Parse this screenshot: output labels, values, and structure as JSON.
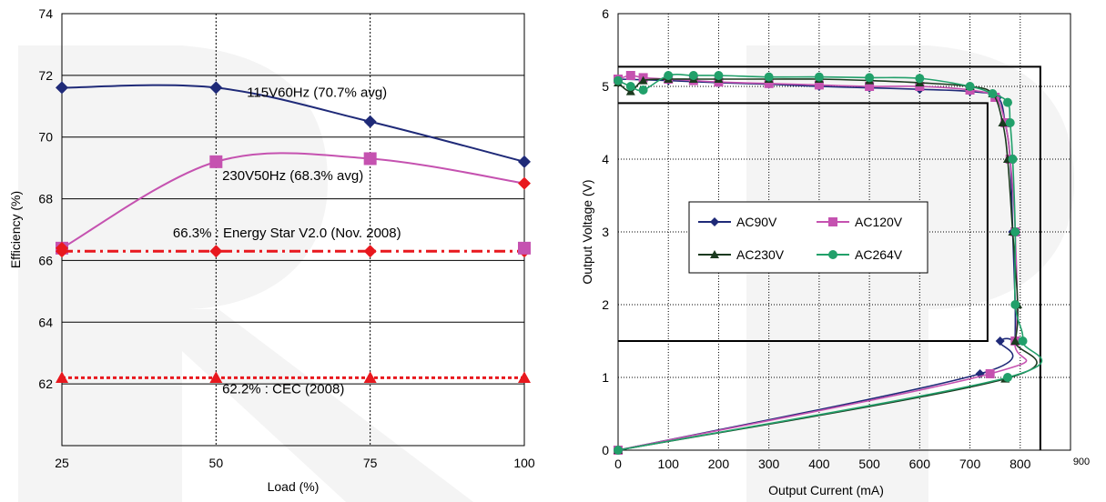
{
  "charts": [
    {
      "chart_data": {
        "type": "line",
        "xlabel": "Load (%)",
        "ylabel": "Efficiency (%)",
        "categories": [
          25,
          50,
          75,
          100
        ],
        "xlim": [
          25,
          100
        ],
        "ylim": [
          60,
          74
        ],
        "yticks": [
          62,
          64,
          66,
          68,
          70,
          72,
          74
        ],
        "grid": true,
        "series": [
          {
            "values": [
              71.6,
              71.6,
              70.5,
              69.2
            ],
            "color": "#1f2a78",
            "marker": "diamond"
          },
          {
            "values": [
              66.4,
              69.2,
              69.3,
              68.5
            ],
            "color": "#c552b0",
            "marker": "square",
            "last_marker": "diamond"
          },
          {
            "values": [
              66.3,
              66.3,
              66.3,
              66.3
            ],
            "color": "#e8181e",
            "marker": "diamond",
            "dash": "dash-dot"
          },
          {
            "values": [
              62.2,
              62.2,
              62.2,
              62.2
            ],
            "color": "#e8181e",
            "marker": "triangle",
            "dash": "dotted"
          }
        ],
        "extra_markers": [
          {
            "x": 100,
            "y": 66.4,
            "color": "#c552b0",
            "marker": "square"
          },
          {
            "x": 25,
            "y": 66.4,
            "color": "#e8181e",
            "marker": "diamond"
          }
        ],
        "annotations": [
          {
            "text": "115V60Hz (70.7% avg)",
            "x": 55,
            "y": 71.3
          },
          {
            "text": "230V50Hz (68.3% avg)",
            "x": 51,
            "y": 68.6
          },
          {
            "text": "66.3% : Energy Star V2.0 (Nov. 2008)",
            "x": 43,
            "y": 66.75
          },
          {
            "text": "62.2% : CEC (2008)",
            "x": 51,
            "y": 61.7
          }
        ]
      }
    },
    {
      "chart_data": {
        "type": "line",
        "xlabel": "Output Current (mA)",
        "ylabel": "Output Voltage (V)",
        "xlim": [
          0,
          900
        ],
        "ylim": [
          0,
          6
        ],
        "xticks": [
          0,
          100,
          200,
          300,
          400,
          500,
          600,
          700,
          800,
          900
        ],
        "yticks": [
          0,
          1,
          2,
          3,
          4,
          5,
          6
        ],
        "grid": true,
        "legend_position": "center-left",
        "series": [
          {
            "name": "AC90V",
            "color": "#1f2a78",
            "marker": "diamond",
            "x": [
              0,
              100,
              200,
              300,
              400,
              500,
              600,
              700,
              755,
              770,
              780,
              785,
              785,
              790,
              790,
              792,
              760,
              720,
              0
            ],
            "y": [
              5.1,
              5.08,
              5.05,
              5.03,
              5.0,
              4.98,
              4.96,
              4.93,
              4.85,
              4.5,
              4.0,
              3.0,
              3.0,
              2.0,
              1.5,
              1.5,
              1.5,
              1.05,
              0
            ]
          },
          {
            "name": "AC120V",
            "color": "#c552b0",
            "marker": "square",
            "x": [
              0,
              25,
              50,
              100,
              150,
              200,
              300,
              400,
              500,
              600,
              700,
              750,
              770,
              780,
              790,
              790,
              740,
              0
            ],
            "y": [
              5.1,
              5.15,
              5.12,
              5.1,
              5.08,
              5.06,
              5.04,
              5.02,
              5.0,
              5.0,
              4.95,
              4.85,
              4.5,
              4.0,
              3.0,
              1.5,
              1.05,
              0
            ]
          },
          {
            "name": "AC230V",
            "color": "#1b3a1f",
            "marker": "triangle",
            "x": [
              0,
              25,
              50,
              100,
              150,
              200,
              300,
              400,
              500,
              600,
              700,
              745,
              765,
              775,
              785,
              795,
              790,
              770,
              0
            ],
            "y": [
              5.05,
              4.93,
              5.08,
              5.1,
              5.1,
              5.1,
              5.1,
              5.1,
              5.08,
              5.05,
              5.0,
              4.9,
              4.5,
              4.0,
              3.0,
              2.0,
              1.5,
              0.98,
              0
            ]
          },
          {
            "name": "AC264V",
            "color": "#21a06a",
            "marker": "circle",
            "x": [
              0,
              25,
              50,
              100,
              150,
              200,
              300,
              400,
              500,
              600,
              700,
              745,
              775,
              780,
              785,
              790,
              790,
              805,
              775,
              0
            ],
            "y": [
              5.08,
              5.0,
              4.95,
              5.15,
              5.15,
              5.15,
              5.13,
              5.13,
              5.12,
              5.11,
              5.0,
              4.9,
              4.78,
              4.5,
              4.0,
              3.0,
              2.0,
              1.5,
              1.0,
              0
            ]
          }
        ],
        "spec_outline": [
          {
            "x": [
              0,
              840,
              840
            ],
            "y": [
              5.27,
              5.27,
              0
            ]
          },
          {
            "x": [
              0,
              735,
              735,
              0
            ],
            "y": [
              4.77,
              4.77,
              1.5,
              1.5
            ]
          }
        ]
      }
    }
  ]
}
